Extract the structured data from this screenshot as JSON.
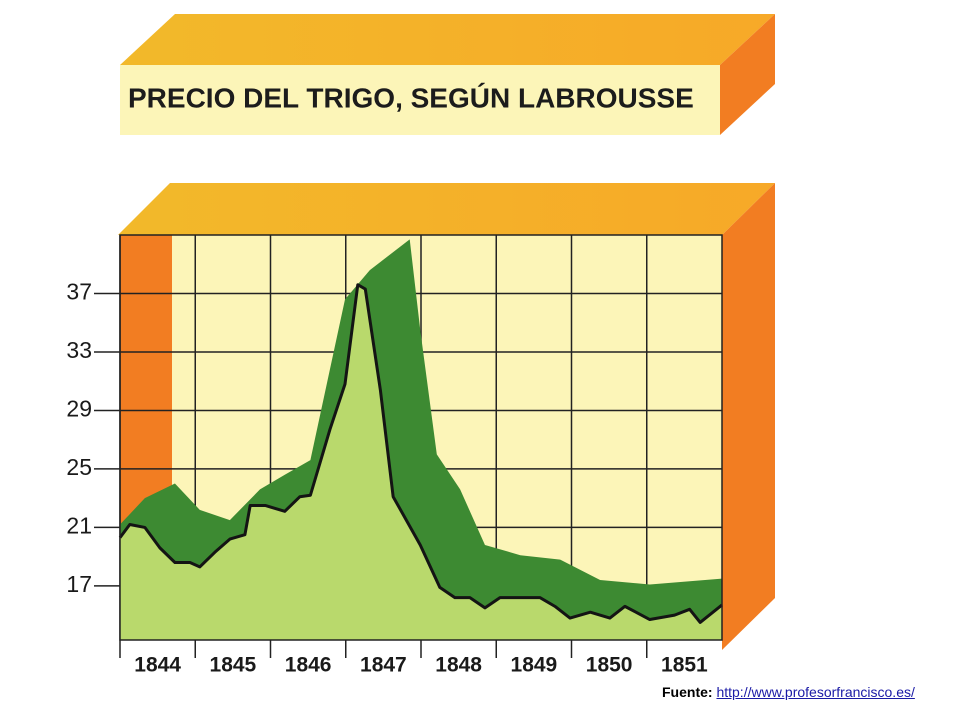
{
  "chart_data": {
    "type": "area",
    "title": "PRECIO DEL TRIGO, SEGÚN LABROUSSE",
    "xlim": [
      1844,
      1852
    ],
    "xticks": [
      1844,
      1845,
      1846,
      1847,
      1848,
      1849,
      1850,
      1851
    ],
    "ylim": [
      13.3,
      41
    ],
    "yticks": [
      17,
      21,
      25,
      29,
      33,
      37
    ],
    "grid": true,
    "series": [
      {
        "color": "#3d8a32",
        "x": [
          1844,
          1844.33,
          1844.73,
          1845.06,
          1845.46,
          1845.86,
          1846.19,
          1846.53,
          1846.99,
          1847.32,
          1847.85,
          1847.99,
          1848.21,
          1848.52,
          1848.85,
          1849.32,
          1849.85,
          1850.38,
          1851.04,
          1852
        ],
        "values": [
          21.2,
          23.0,
          24.0,
          22.2,
          21.5,
          23.6,
          24.6,
          25.6,
          36.6,
          38.6,
          40.7,
          34.5,
          26.0,
          23.6,
          19.8,
          19.1,
          18.8,
          17.4,
          17.1,
          17.5
        ]
      },
      {
        "color": "#b9d96c",
        "line_color": "#141414",
        "x": [
          1844,
          1844.13,
          1844.33,
          1844.53,
          1844.73,
          1844.93,
          1845.06,
          1845.26,
          1845.46,
          1845.66,
          1845.73,
          1845.93,
          1846.19,
          1846.39,
          1846.53,
          1846.79,
          1846.99,
          1847.16,
          1847.26,
          1847.46,
          1847.63,
          1847.99,
          1848.25,
          1848.45,
          1848.65,
          1848.85,
          1849.05,
          1849.32,
          1849.58,
          1849.78,
          1849.98,
          1850.25,
          1850.51,
          1850.71,
          1851.04,
          1851.37,
          1851.57,
          1851.71,
          1852
        ],
        "values": [
          20.3,
          21.2,
          21.0,
          19.6,
          18.6,
          18.6,
          18.3,
          19.3,
          20.2,
          20.5,
          22.5,
          22.5,
          22.1,
          23.1,
          23.2,
          27.7,
          30.8,
          37.6,
          37.3,
          30.4,
          23.1,
          19.8,
          16.9,
          16.2,
          16.2,
          15.5,
          16.2,
          16.2,
          16.2,
          15.6,
          14.8,
          15.2,
          14.8,
          15.6,
          14.7,
          15.0,
          15.4,
          14.5,
          15.7
        ]
      }
    ]
  },
  "source": {
    "label": "Fuente:",
    "url": "http://www.profesorfrancisco.es/"
  }
}
